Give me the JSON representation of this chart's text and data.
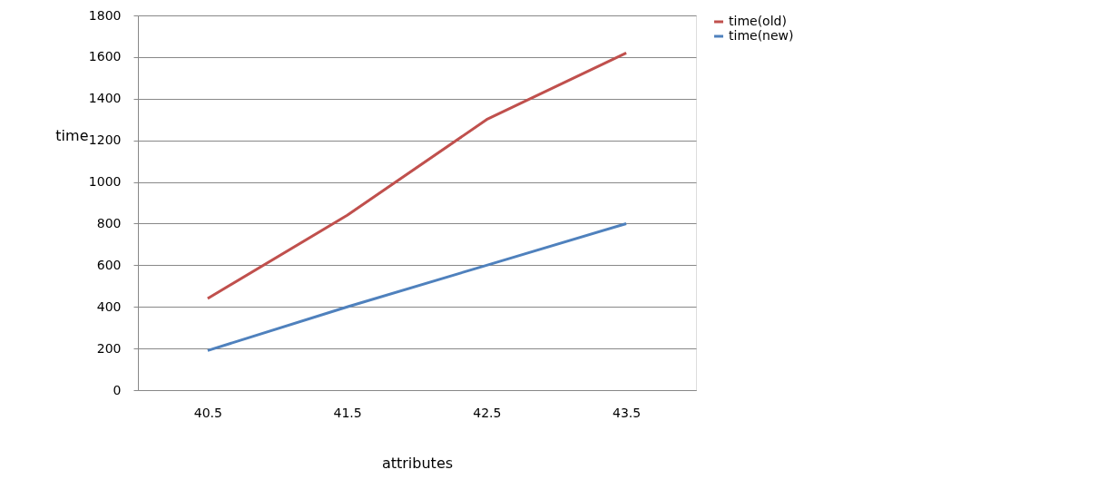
{
  "chart_data": {
    "type": "line",
    "xlabel": "attributes",
    "ylabel": "time",
    "categories": [
      "40.5",
      "41.5",
      "42.5",
      "43.5"
    ],
    "series": [
      {
        "name": "time(old)",
        "color": "#c0504d",
        "values": [
          440,
          840,
          1300,
          1620
        ]
      },
      {
        "name": "time(new)",
        "color": "#4f81bd",
        "values": [
          190,
          400,
          600,
          800
        ]
      }
    ],
    "ylim": [
      0,
      1800
    ],
    "yticks": [
      0,
      200,
      400,
      600,
      800,
      1000,
      1200,
      1400,
      1600,
      1800
    ],
    "grid": "y",
    "legend": "right",
    "marker": "none",
    "line_style": "solid"
  }
}
